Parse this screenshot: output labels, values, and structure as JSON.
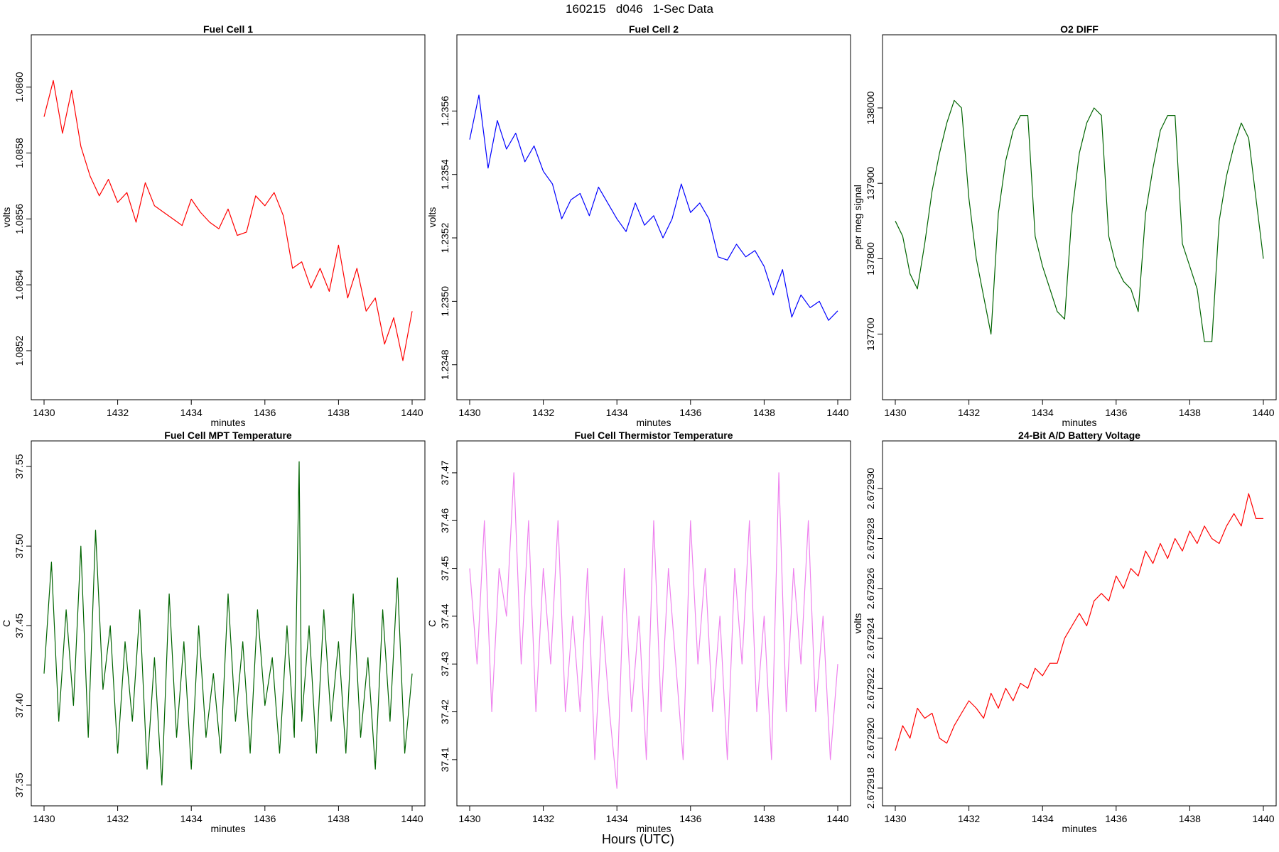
{
  "main_title": "160215   d046   1-Sec Data",
  "outer_xlabel": "Hours (UTC)",
  "chart_data": [
    {
      "type": "line",
      "title": "Fuel Cell 1",
      "xlabel": "minutes",
      "ylabel": "volts",
      "color": "#ff0000",
      "xlim": [
        1430,
        1440
      ],
      "ylim": [
        1.08509,
        1.08612
      ],
      "xticks": [
        1430,
        1432,
        1434,
        1436,
        1438,
        1440
      ],
      "xtick_labels": [
        "1430",
        "1432",
        "1434",
        "1436",
        "1438",
        "1440"
      ],
      "yticks": [
        1.0852,
        1.0854,
        1.0856,
        1.0858,
        1.086
      ],
      "ytick_labels": [
        "1.0852",
        "1.0854",
        "1.0856",
        "1.0858",
        "1.0860"
      ],
      "series": [
        {
          "x": [
            1430,
            1430.25,
            1430.5,
            1430.75,
            1431,
            1431.25,
            1431.5,
            1431.75,
            1432,
            1432.25,
            1432.5,
            1432.75,
            1433,
            1433.25,
            1433.5,
            1433.75,
            1434,
            1434.25,
            1434.5,
            1434.75,
            1435,
            1435.25,
            1435.5,
            1435.75,
            1436,
            1436.25,
            1436.5,
            1436.75,
            1437,
            1437.25,
            1437.5,
            1437.75,
            1438,
            1438.25,
            1438.5,
            1438.75,
            1439,
            1439.25,
            1439.5,
            1439.75,
            1440
          ],
          "y": [
            1.08591,
            1.08602,
            1.08586,
            1.08599,
            1.08582,
            1.08573,
            1.08567,
            1.08572,
            1.08565,
            1.08568,
            1.08559,
            1.08571,
            1.08564,
            1.08562,
            1.0856,
            1.08558,
            1.08566,
            1.08562,
            1.08559,
            1.08557,
            1.08563,
            1.08555,
            1.08556,
            1.08567,
            1.08564,
            1.08568,
            1.08561,
            1.08545,
            1.08547,
            1.08539,
            1.08545,
            1.08538,
            1.08552,
            1.08536,
            1.08545,
            1.08532,
            1.08536,
            1.08522,
            1.0853,
            1.08517,
            1.08532
          ]
        }
      ]
    },
    {
      "type": "line",
      "title": "Fuel Cell 2",
      "xlabel": "minutes",
      "ylabel": "volts",
      "color": "#0000ff",
      "xlim": [
        1430,
        1440
      ],
      "ylim": [
        1.23473,
        1.2358
      ],
      "xticks": [
        1430,
        1432,
        1434,
        1436,
        1438,
        1440
      ],
      "xtick_labels": [
        "1430",
        "1432",
        "1434",
        "1436",
        "1438",
        "1440"
      ],
      "yticks": [
        1.2348,
        1.235,
        1.2352,
        1.2354,
        1.2356
      ],
      "ytick_labels": [
        "1.2348",
        "1.2350",
        "1.2352",
        "1.2354",
        "1.2356"
      ],
      "series": [
        {
          "x": [
            1430,
            1430.25,
            1430.5,
            1430.75,
            1431,
            1431.25,
            1431.5,
            1431.75,
            1432,
            1432.25,
            1432.5,
            1432.75,
            1433,
            1433.25,
            1433.5,
            1433.75,
            1434,
            1434.25,
            1434.5,
            1434.75,
            1435,
            1435.25,
            1435.5,
            1435.75,
            1436,
            1436.25,
            1436.5,
            1436.75,
            1437,
            1437.25,
            1437.5,
            1437.75,
            1438,
            1438.25,
            1438.5,
            1438.75,
            1439,
            1439.25,
            1439.5,
            1439.75,
            1440
          ],
          "y": [
            1.23551,
            1.23565,
            1.23542,
            1.23557,
            1.23548,
            1.23553,
            1.23544,
            1.23549,
            1.23541,
            1.23537,
            1.23526,
            1.23532,
            1.23534,
            1.23527,
            1.23536,
            1.23531,
            1.23526,
            1.23522,
            1.23531,
            1.23524,
            1.23527,
            1.2352,
            1.23526,
            1.23537,
            1.23528,
            1.23531,
            1.23526,
            1.23514,
            1.23513,
            1.23518,
            1.23514,
            1.23516,
            1.23511,
            1.23502,
            1.2351,
            1.23495,
            1.23502,
            1.23498,
            1.235,
            1.23494,
            1.23497
          ]
        }
      ]
    },
    {
      "type": "line",
      "title": "O2 DIFF",
      "xlabel": "minutes",
      "ylabel": "per meg signal",
      "color": "#006400",
      "xlim": [
        1430,
        1440
      ],
      "ylim": [
        137630,
        138080
      ],
      "xticks": [
        1430,
        1432,
        1434,
        1436,
        1438,
        1440
      ],
      "xtick_labels": [
        "1430",
        "1432",
        "1434",
        "1436",
        "1438",
        "1440"
      ],
      "yticks": [
        137700,
        137800,
        137900,
        138000
      ],
      "ytick_labels": [
        "137700",
        "137800",
        "137900",
        "138000"
      ],
      "series": [
        {
          "x": [
            1430,
            1430.2,
            1430.4,
            1430.6,
            1430.8,
            1431,
            1431.2,
            1431.4,
            1431.6,
            1431.8,
            1432,
            1432.2,
            1432.4,
            1432.6,
            1432.8,
            1433,
            1433.2,
            1433.4,
            1433.6,
            1433.8,
            1434,
            1434.2,
            1434.4,
            1434.6,
            1434.8,
            1435,
            1435.2,
            1435.4,
            1435.6,
            1435.8,
            1436,
            1436.2,
            1436.4,
            1436.6,
            1436.8,
            1437,
            1437.2,
            1437.4,
            1437.6,
            1437.8,
            1438,
            1438.2,
            1438.4,
            1438.6,
            1438.8,
            1439,
            1439.2,
            1439.4,
            1439.6,
            1439.8,
            1440
          ],
          "y": [
            137850,
            137830,
            137780,
            137760,
            137820,
            137890,
            137940,
            137980,
            138010,
            138000,
            137880,
            137800,
            137750,
            137700,
            137860,
            137930,
            137970,
            137990,
            137990,
            137830,
            137790,
            137760,
            137730,
            137720,
            137860,
            137940,
            137980,
            138000,
            137990,
            137830,
            137790,
            137770,
            137760,
            137730,
            137860,
            137920,
            137970,
            137990,
            137990,
            137820,
            137790,
            137760,
            137690,
            137690,
            137850,
            137910,
            137950,
            137980,
            137960,
            137880,
            137800
          ]
        }
      ]
    },
    {
      "type": "line",
      "title": "Fuel Cell MPT Temperature",
      "xlabel": "minutes",
      "ylabel": "C",
      "color": "#006400",
      "xlim": [
        1430,
        1440
      ],
      "ylim": [
        37.345,
        37.558
      ],
      "xticks": [
        1430,
        1432,
        1434,
        1436,
        1438,
        1440
      ],
      "xtick_labels": [
        "1430",
        "1432",
        "1434",
        "1436",
        "1438",
        "1440"
      ],
      "yticks": [
        37.35,
        37.4,
        37.45,
        37.5,
        37.55
      ],
      "ytick_labels": [
        "37.35",
        "37.40",
        "37.45",
        "37.50",
        "37.55"
      ],
      "series": [
        {
          "x": [
            1430,
            1430.2,
            1430.4,
            1430.6,
            1430.8,
            1431,
            1431.2,
            1431.4,
            1431.6,
            1431.8,
            1432,
            1432.2,
            1432.4,
            1432.6,
            1432.8,
            1433,
            1433.2,
            1433.4,
            1433.6,
            1433.8,
            1434,
            1434.2,
            1434.4,
            1434.6,
            1434.8,
            1435,
            1435.2,
            1435.4,
            1435.6,
            1435.8,
            1436,
            1436.2,
            1436.4,
            1436.6,
            1436.8,
            1436.93,
            1437,
            1437.2,
            1437.4,
            1437.6,
            1437.8,
            1438,
            1438.2,
            1438.4,
            1438.6,
            1438.8,
            1439,
            1439.2,
            1439.4,
            1439.6,
            1439.8,
            1440
          ],
          "y": [
            37.42,
            37.49,
            37.39,
            37.46,
            37.4,
            37.5,
            37.38,
            37.51,
            37.41,
            37.45,
            37.37,
            37.44,
            37.39,
            37.46,
            37.36,
            37.43,
            37.35,
            37.47,
            37.38,
            37.44,
            37.36,
            37.45,
            37.38,
            37.42,
            37.37,
            37.47,
            37.39,
            37.44,
            37.37,
            37.46,
            37.4,
            37.43,
            37.37,
            37.45,
            37.38,
            37.553,
            37.39,
            37.45,
            37.37,
            37.46,
            37.39,
            37.44,
            37.37,
            37.47,
            37.38,
            37.43,
            37.36,
            37.46,
            37.39,
            37.48,
            37.37,
            37.42
          ]
        }
      ]
    },
    {
      "type": "line",
      "title": "Fuel Cell Thermistor Temperature",
      "xlabel": "minutes",
      "ylabel": "C",
      "color": "#ee82ee",
      "xlim": [
        1430,
        1440
      ],
      "ylim": [
        37.403,
        37.474
      ],
      "xticks": [
        1430,
        1432,
        1434,
        1436,
        1438,
        1440
      ],
      "xtick_labels": [
        "1430",
        "1432",
        "1434",
        "1436",
        "1438",
        "1440"
      ],
      "yticks": [
        37.41,
        37.42,
        37.43,
        37.44,
        37.45,
        37.46,
        37.47
      ],
      "ytick_labels": [
        "37.41",
        "37.42",
        "37.43",
        "37.44",
        "37.45",
        "37.46",
        "37.47"
      ],
      "series": [
        {
          "x": [
            1430,
            1430.2,
            1430.4,
            1430.6,
            1430.8,
            1431,
            1431.2,
            1431.4,
            1431.6,
            1431.8,
            1432,
            1432.2,
            1432.4,
            1432.6,
            1432.8,
            1433,
            1433.2,
            1433.4,
            1433.6,
            1433.8,
            1434,
            1434.2,
            1434.4,
            1434.6,
            1434.8,
            1435,
            1435.2,
            1435.4,
            1435.6,
            1435.8,
            1436,
            1436.2,
            1436.4,
            1436.6,
            1436.8,
            1437,
            1437.2,
            1437.4,
            1437.6,
            1437.8,
            1438,
            1438.2,
            1438.4,
            1438.6,
            1438.8,
            1439,
            1439.2,
            1439.4,
            1439.6,
            1439.8,
            1440
          ],
          "y": [
            37.45,
            37.43,
            37.46,
            37.42,
            37.45,
            37.44,
            37.47,
            37.43,
            37.46,
            37.42,
            37.45,
            37.43,
            37.46,
            37.42,
            37.44,
            37.42,
            37.45,
            37.41,
            37.44,
            37.42,
            37.404,
            37.45,
            37.42,
            37.44,
            37.41,
            37.46,
            37.42,
            37.45,
            37.43,
            37.41,
            37.46,
            37.43,
            37.45,
            37.42,
            37.44,
            37.41,
            37.45,
            37.43,
            37.46,
            37.42,
            37.44,
            37.41,
            37.47,
            37.42,
            37.45,
            37.43,
            37.46,
            37.42,
            37.44,
            37.41,
            37.43
          ]
        }
      ]
    },
    {
      "type": "line",
      "title": "24-Bit A/D Battery Voltage",
      "xlabel": "minutes",
      "ylabel": "volts",
      "color": "#ff0000",
      "xlim": [
        1430,
        1440
      ],
      "ylim": [
        2.6729178,
        2.6729314
      ],
      "xticks": [
        1430,
        1432,
        1434,
        1436,
        1438,
        1440
      ],
      "xtick_labels": [
        "1430",
        "1432",
        "1434",
        "1436",
        "1438",
        "1440"
      ],
      "yticks": [
        2.672918,
        2.67292,
        2.672922,
        2.672924,
        2.672926,
        2.672928,
        2.67293
      ],
      "ytick_labels": [
        "2.672918",
        "2.672920",
        "2.672922",
        "2.672924",
        "2.672926",
        "2.672928",
        "2.672930"
      ],
      "series": [
        {
          "x": [
            1430,
            1430.2,
            1430.4,
            1430.6,
            1430.8,
            1431,
            1431.2,
            1431.4,
            1431.6,
            1431.8,
            1432,
            1432.2,
            1432.4,
            1432.6,
            1432.8,
            1433,
            1433.2,
            1433.4,
            1433.6,
            1433.8,
            1434,
            1434.2,
            1434.4,
            1434.6,
            1434.8,
            1435,
            1435.2,
            1435.4,
            1435.6,
            1435.8,
            1436,
            1436.2,
            1436.4,
            1436.6,
            1436.8,
            1437,
            1437.2,
            1437.4,
            1437.6,
            1437.8,
            1438,
            1438.2,
            1438.4,
            1438.6,
            1438.8,
            1439,
            1439.2,
            1439.4,
            1439.6,
            1439.8,
            1440
          ],
          "y": [
            2.6729195,
            2.6729205,
            2.67292,
            2.6729212,
            2.6729208,
            2.672921,
            2.67292,
            2.6729198,
            2.6729205,
            2.672921,
            2.6729215,
            2.6729212,
            2.6729208,
            2.6729218,
            2.6729212,
            2.672922,
            2.6729215,
            2.6729222,
            2.672922,
            2.6729228,
            2.6729225,
            2.672923,
            2.672923,
            2.672924,
            2.6729245,
            2.672925,
            2.6729245,
            2.6729255,
            2.6729258,
            2.6729255,
            2.6729265,
            2.672926,
            2.6729268,
            2.6729265,
            2.6729275,
            2.672927,
            2.6729278,
            2.6729272,
            2.672928,
            2.6729275,
            2.6729283,
            2.6729278,
            2.6729285,
            2.672928,
            2.6729278,
            2.6729285,
            2.672929,
            2.6729285,
            2.6729298,
            2.6729288,
            2.6729288
          ]
        }
      ]
    }
  ]
}
